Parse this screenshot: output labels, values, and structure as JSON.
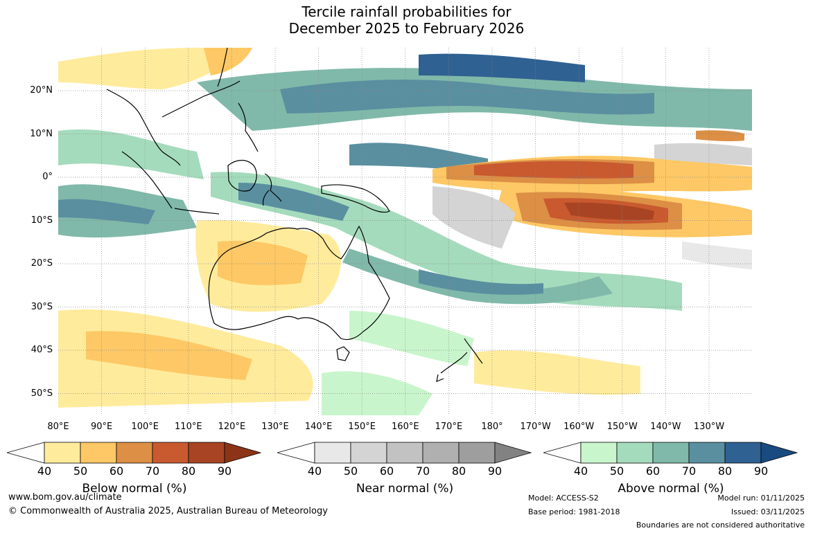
{
  "title": {
    "line1": "Tercile rainfall probabilities for",
    "line2": "December 2025 to February 2026"
  },
  "map": {
    "lat_labels": [
      "20°N",
      "10°N",
      "0°",
      "10°S",
      "20°S",
      "30°S",
      "40°S",
      "50°S"
    ],
    "lon_labels": [
      "80°E",
      "90°E",
      "100°E",
      "110°E",
      "120°E",
      "130°E",
      "140°E",
      "150°E",
      "160°E",
      "170°E",
      "180°",
      "170°W",
      "160°W",
      "150°W",
      "140°W",
      "130°W"
    ]
  },
  "legends": [
    {
      "title": "Below normal (%)",
      "ticks": [
        "40",
        "50",
        "60",
        "70",
        "80",
        "90"
      ],
      "colors": [
        "#ffffff",
        "#ffeb9c",
        "#fdc865",
        "#dc8f45",
        "#c9592f",
        "#a84423",
        "#8c3417"
      ]
    },
    {
      "title": "Near normal (%)",
      "ticks": [
        "40",
        "50",
        "60",
        "70",
        "80",
        "90"
      ],
      "colors": [
        "#ffffff",
        "#e8e8e8",
        "#d4d4d4",
        "#c2c2c2",
        "#b0b0b0",
        "#9e9e9e",
        "#828282"
      ]
    },
    {
      "title": "Above normal (%)",
      "ticks": [
        "40",
        "50",
        "60",
        "70",
        "80",
        "90"
      ],
      "colors": [
        "#ffffff",
        "#c9f5cc",
        "#a4dbbc",
        "#80b9a9",
        "#5a8fa0",
        "#2f6192",
        "#194a80"
      ]
    }
  ],
  "footer": {
    "website": "www.bom.gov.au/climate",
    "copyright": "© Commonwealth of Australia 2025, Australian Bureau of Meteorology",
    "model": "Model: ACCESS-S2",
    "base_period": "Base period: 1981-2018",
    "model_run": "Model run: 01/11/2025",
    "issued": "Issued: 03/11/2025",
    "boundaries": "Boundaries are not considered authoritative"
  }
}
